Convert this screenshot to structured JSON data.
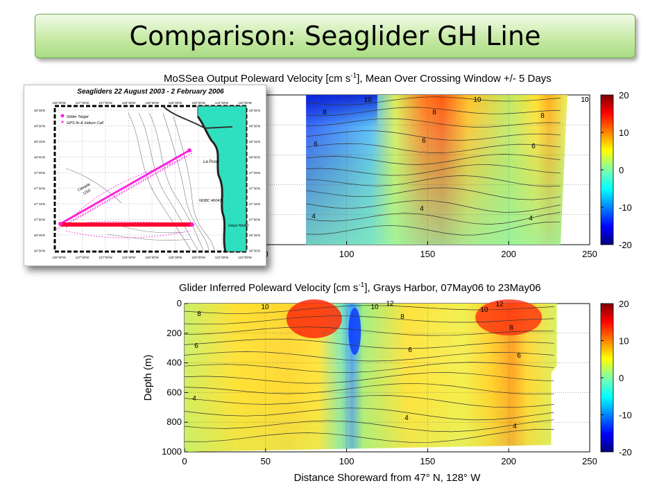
{
  "slide_title": "Comparison: Seaglider GH Line",
  "colors": {
    "title_bg": "#c7eaa6",
    "title_border": "#6aa84f"
  },
  "top_panel": {
    "title_prefix": "MoSSea Output Poleward Velocity [cm s",
    "title_sup": "-1",
    "title_suffix": "], Mean Over Crossing Window +/- 5 Days"
  },
  "bottom_panel": {
    "title_prefix": "Glider Inferred Poleward Velocity [cm s",
    "title_sup": "-1",
    "title_suffix": "], Grays Harbor, 07May06 to 23May06"
  },
  "inset": {
    "title": "Seagliders 22 August 2003 - 2 February 2006",
    "legend": [
      "Glider Target",
      "GPS fix & Iridium Call"
    ],
    "lon_labels": [
      "128°00'W",
      "127°30'W",
      "127°00'W",
      "126°30'W",
      "126°00'W",
      "125°30'W",
      "125°00'W",
      "124°30'W",
      "124°00'W"
    ],
    "lat_labels": [
      "48°45'N",
      "48°30'N",
      "48°15'N",
      "48°00'N",
      "47°45'N",
      "47°30'N",
      "47°15'N",
      "47°00'N",
      "46°45'N",
      "46°30'N"
    ],
    "place_labels": [
      "La Push",
      "NDBC 46041",
      "Grays Harbor",
      "Canada",
      "USA"
    ]
  },
  "chart_data": [
    {
      "type": "heatmap",
      "title": "MoSSea Output Poleward Velocity [cm s-1], Mean Over Crossing Window +/- 5 Days",
      "xlabel": "",
      "ylabel": "",
      "xlim": [
        0,
        250
      ],
      "ylim": [
        0,
        1000
      ],
      "x_ticks": [
        0,
        50,
        100,
        150,
        200,
        250
      ],
      "x_tick_labels_visible": [
        "0",
        "100",
        "150",
        "200",
        "250"
      ],
      "colorbar": {
        "ticks": [
          20,
          10,
          0,
          -10,
          -20
        ],
        "range": [
          -20,
          20
        ]
      },
      "contour_labels": [
        "10",
        "8",
        "6",
        "4",
        "10",
        "8",
        "6",
        "4",
        "10",
        "8",
        "6",
        "4",
        "10"
      ],
      "data_x_range": [
        75,
        232
      ],
      "grid": true
    },
    {
      "type": "heatmap",
      "title": "Glider Inferred Poleward Velocity [cm s-1], Grays Harbor, 07May06 to 23May06",
      "xlabel": "Distance Shoreward from 47° N, 128° W",
      "ylabel": "Depth (m)",
      "xlim": [
        0,
        250
      ],
      "ylim": [
        0,
        1000
      ],
      "x_ticks": [
        0,
        50,
        100,
        150,
        200,
        250
      ],
      "y_ticks": [
        0,
        200,
        400,
        600,
        800,
        1000
      ],
      "colorbar": {
        "ticks": [
          20,
          10,
          0,
          -10,
          -20
        ],
        "range": [
          -20,
          20
        ]
      },
      "contour_labels": [
        "10",
        "8",
        "6",
        "4",
        "10",
        "12",
        "8",
        "6",
        "4",
        "10",
        "12",
        "8",
        "6",
        "4"
      ],
      "data_x_range": [
        0,
        228
      ],
      "grid": true
    }
  ]
}
